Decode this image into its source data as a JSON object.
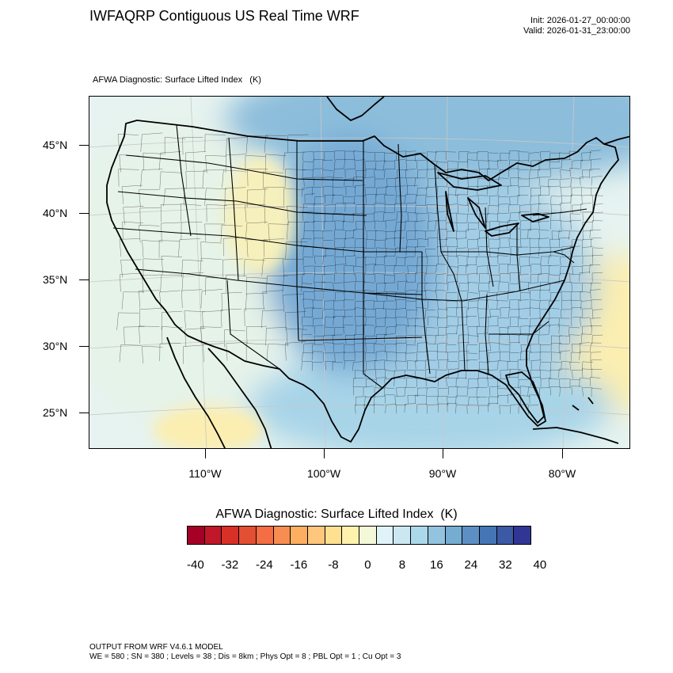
{
  "title": "IWFAQRP Contiguous US Real Time WRF",
  "init": "Init: 2026-01-27_00:00:00",
  "valid": "Valid: 2026-01-31_23:00:00",
  "subtitle": "AFWA Diagnostic: Surface Lifted Index   (K)",
  "map": {
    "lat_labels": [
      "45°N",
      "40°N",
      "35°N",
      "30°N",
      "25°N"
    ],
    "lon_labels": [
      "110°W",
      "100°W",
      "90°W",
      "80°W"
    ],
    "field_colors": {
      "ocean_pacific": "#e6f3e8",
      "ocean_gulf": "#a8d4e8",
      "atlantic_warm": "#fbeeb0",
      "canada_cold": "#8cbddb",
      "plains_deep": "#74a9d4",
      "west_mild": "#e6f3f0",
      "rockies_warm": "#f6f0bc",
      "east_mid": "#a2cde6"
    }
  },
  "colorbar": {
    "title": "AFWA Diagnostic: Surface Lifted Index  (K)",
    "colors": [
      "#a50026",
      "#c0182a",
      "#d73027",
      "#e34f33",
      "#f46d43",
      "#f88d52",
      "#fdae61",
      "#fec77c",
      "#fee090",
      "#fff2ac",
      "#f2f8d8",
      "#e0f3f8",
      "#cbe8f2",
      "#abd9e9",
      "#93c3df",
      "#74add1",
      "#5e8fc4",
      "#4575b4",
      "#3c59a6",
      "#313695"
    ],
    "labels": [
      "-40",
      "-32",
      "-24",
      "-16",
      "-8",
      "0",
      "8",
      "16",
      "24",
      "32",
      "40"
    ]
  },
  "footer": {
    "line1": "OUTPUT FROM WRF V4.6.1 MODEL",
    "line2": "WE = 580 ; SN = 380 ; Levels = 38 ; Dis = 8km ; Phys Opt = 8 ; PBL Opt = 1 ; Cu Opt = 3"
  }
}
